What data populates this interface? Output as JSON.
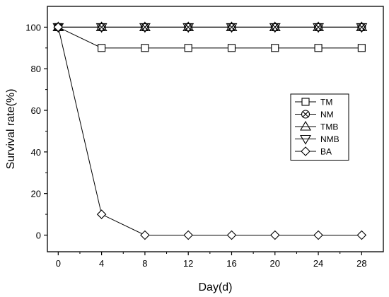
{
  "chart_data": {
    "type": "line",
    "xlabel": "Day(d)",
    "ylabel": "Survival rate(%)",
    "xlim": [
      -1,
      30
    ],
    "ylim": [
      -8,
      110
    ],
    "x_ticks": [
      0,
      4,
      8,
      12,
      16,
      20,
      24,
      28
    ],
    "x_tick_labels": [
      "0",
      "4",
      "8",
      "12",
      "16",
      "20",
      "24",
      "28"
    ],
    "y_ticks": [
      0,
      20,
      40,
      60,
      80,
      100
    ],
    "y_tick_labels": [
      "0",
      "20",
      "40",
      "60",
      "80",
      "100"
    ],
    "grid": false,
    "legend_position": "right",
    "x": [
      0,
      4,
      8,
      12,
      16,
      20,
      24,
      28
    ],
    "series": [
      {
        "name": "TM",
        "marker": "square",
        "values": [
          100,
          90,
          90,
          90,
          90,
          90,
          90,
          90
        ]
      },
      {
        "name": "NM",
        "marker": "circle-x",
        "values": [
          100,
          100,
          100,
          100,
          100,
          100,
          100,
          100
        ]
      },
      {
        "name": "TMB",
        "marker": "triangle-up",
        "values": [
          100,
          100,
          100,
          100,
          100,
          100,
          100,
          100
        ]
      },
      {
        "name": "NMB",
        "marker": "triangle-down",
        "values": [
          100,
          100,
          100,
          100,
          100,
          100,
          100,
          100
        ]
      },
      {
        "name": "BA",
        "marker": "diamond",
        "values": [
          100,
          10,
          0,
          0,
          0,
          0,
          0,
          0
        ]
      }
    ]
  }
}
